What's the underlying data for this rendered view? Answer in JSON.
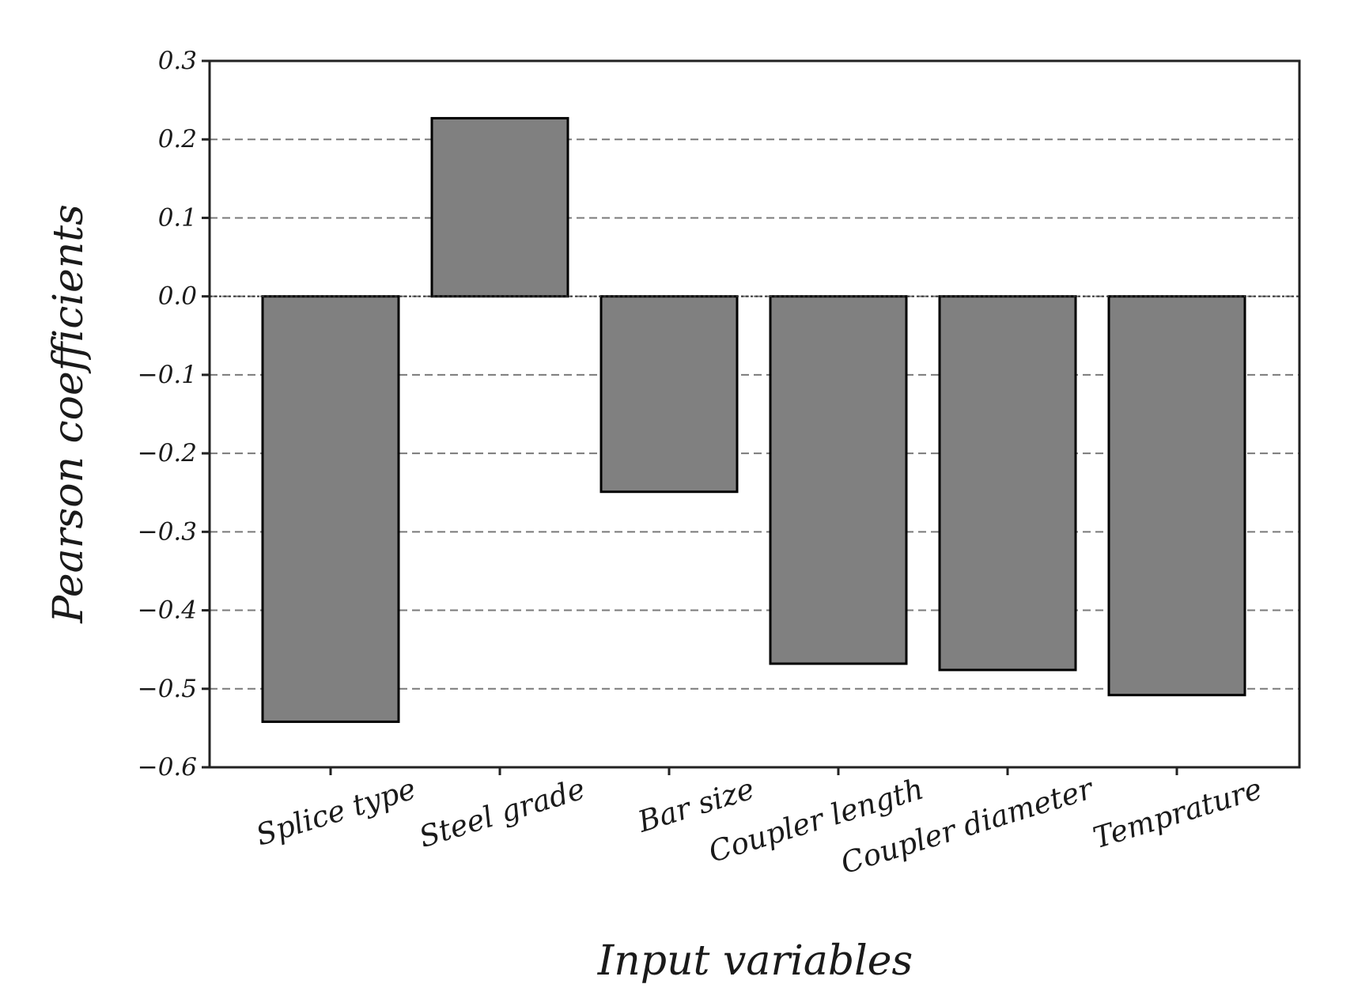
{
  "chart_data": {
    "type": "bar",
    "title": "",
    "xlabel": "Input variables",
    "ylabel": "Pearson coefficients",
    "categories": [
      "Splice type",
      "Steel grade",
      "Bar size",
      "Coupler length",
      "Coupler diameter",
      "Temprature"
    ],
    "values": [
      -0.542,
      0.227,
      -0.249,
      -0.468,
      -0.476,
      -0.508
    ],
    "ylim": [
      -0.6,
      0.3
    ],
    "yticks": [
      0.3,
      0.2,
      0.1,
      0.0,
      -0.1,
      -0.2,
      -0.3,
      -0.4,
      -0.5,
      -0.6
    ],
    "ytick_labels": [
      "0.3",
      "0.2",
      "0.1",
      "0.0",
      "−0.1",
      "−0.2",
      "−0.3",
      "−0.4",
      "−0.5",
      "−0.6"
    ],
    "grid": "horizontal dashed",
    "bar_color": "#808080",
    "bar_edge_color": "#000000"
  }
}
